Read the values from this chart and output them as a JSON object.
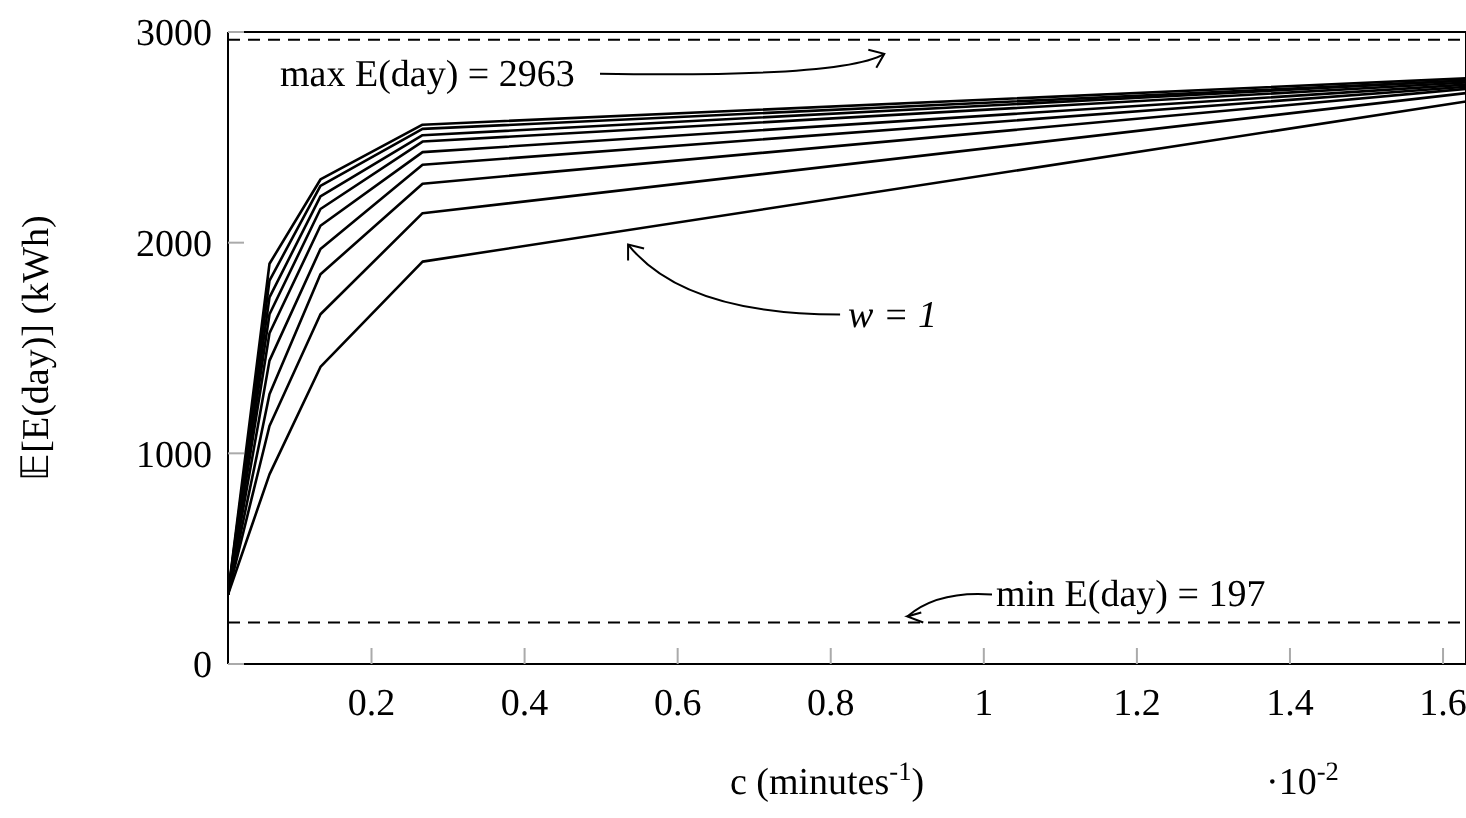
{
  "chart_data": {
    "type": "line",
    "xlabel": "c (minutes$^{-1}$)",
    "ylabel": "𝔼[E(day)] (kWh)",
    "x": [
      0.0125,
      0.0667,
      0.1333,
      0.2667,
      1.63
    ],
    "series": [
      {
        "color": "#000000",
        "values": [
          330,
          1900,
          2300,
          2560,
          2780
        ]
      },
      {
        "color": "#000000",
        "values": [
          330,
          1820,
          2270,
          2540,
          2770
        ]
      },
      {
        "color": "#000000",
        "values": [
          330,
          1740,
          2220,
          2510,
          2770
        ]
      },
      {
        "color": "#000000",
        "values": [
          330,
          1660,
          2160,
          2480,
          2760
        ]
      },
      {
        "color": "#000000",
        "values": [
          330,
          1570,
          2080,
          2430,
          2750
        ]
      },
      {
        "color": "#000000",
        "values": [
          330,
          1440,
          1970,
          2370,
          2740
        ]
      },
      {
        "color": "#000000",
        "values": [
          330,
          1280,
          1850,
          2280,
          2730
        ]
      },
      {
        "color": "#000000",
        "values": [
          330,
          1130,
          1660,
          2140,
          2710
        ]
      },
      {
        "color": "#000000",
        "values": [
          330,
          900,
          1410,
          1910,
          2670
        ]
      }
    ],
    "xlim": [
      0.0125,
      1.63
    ],
    "xticks": [
      0.2,
      0.4,
      0.6,
      0.8,
      1,
      1.2,
      1.4,
      1.6
    ],
    "ylim": [
      0,
      3000
    ],
    "yticks": [
      0,
      1000,
      2000,
      3000
    ],
    "ref_lines": [
      {
        "axis": "y",
        "value": 2963,
        "label": "max E(day) = 2963",
        "line_style": "dashed",
        "color": "#000000"
      },
      {
        "axis": "y",
        "value": 197,
        "label": "min E(day) = 197",
        "line_style": "dashed",
        "color": "#000000"
      }
    ],
    "annotations": [
      {
        "text": "w = 1",
        "x": 0.53,
        "y": 2010
      },
      "·10$^{-2}$"
    ],
    "marker": "none",
    "line_style": "solid"
  }
}
